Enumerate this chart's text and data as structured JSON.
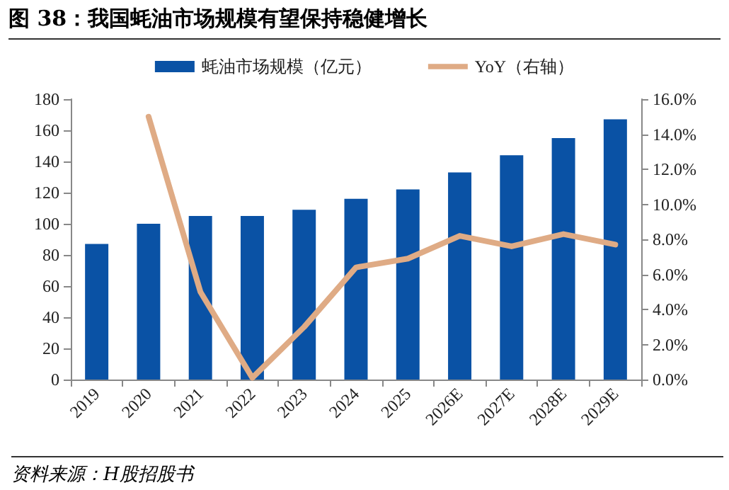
{
  "chart_data": {
    "type": "bar",
    "title": "图 38：我国蚝油市场规模有望保持稳健增长",
    "categories": [
      "2019",
      "2020",
      "2021",
      "2022",
      "2023",
      "2024",
      "2025",
      "2026E",
      "2027E",
      "2028E",
      "2029E"
    ],
    "series": [
      {
        "name": "蚝油市场规模（亿元）",
        "color": "#0a52a5",
        "values": [
          87,
          100,
          105,
          105,
          109,
          116,
          122,
          133,
          144,
          155,
          167
        ]
      },
      {
        "name": "YoY（右轴）",
        "type": "line",
        "axis": "y2",
        "color": "#dfab85",
        "values": [
          null,
          15.0,
          5.0,
          0.1,
          3.0,
          6.4,
          6.9,
          8.2,
          7.6,
          8.3,
          7.7
        ]
      }
    ],
    "ylim": [
      0,
      180
    ],
    "yticks": [
      0,
      20,
      40,
      60,
      80,
      100,
      120,
      140,
      160,
      180
    ],
    "y2lim": [
      0,
      16
    ],
    "y2ticks": [
      {
        "value": 0,
        "label": "0.0%"
      },
      {
        "value": 2,
        "label": "2.0%"
      },
      {
        "value": 4,
        "label": "4.0%"
      },
      {
        "value": 6,
        "label": "6.0%"
      },
      {
        "value": 8,
        "label": "8.0%"
      },
      {
        "value": 10,
        "label": "10.0%"
      },
      {
        "value": 12,
        "label": "12.0%"
      },
      {
        "value": 14,
        "label": "14.0%"
      },
      {
        "value": 16,
        "label": "16.0%"
      }
    ],
    "legend": "top",
    "grid": false,
    "marker": "none",
    "annotations": [
      "资料来源：H股招股书"
    ]
  }
}
